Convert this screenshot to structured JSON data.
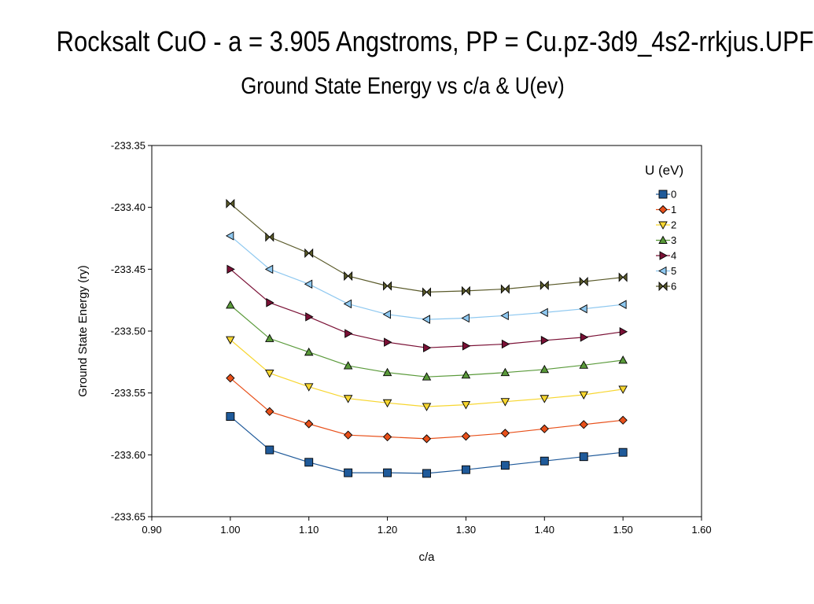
{
  "title": "Rocksalt CuO - a = 3.905 Angstroms, PP = Cu.pz-3d9_4s2-rrkjus.UPF",
  "subtitle": "Ground State Energy vs c/a & U(ev)",
  "chart_data": {
    "type": "line",
    "title": "Rocksalt CuO - a = 3.905 Angstroms, PP = Cu.pz-3d9_4s2-rrkjus.UPF",
    "subtitle": "Ground State Energy vs c/a & U(ev)",
    "xlabel": "c/a",
    "ylabel": "Ground State Energy (ry)",
    "xlim": [
      0.9,
      1.6
    ],
    "ylim": [
      -233.65,
      -233.35
    ],
    "xticks": [
      "0.90",
      "1.00",
      "1.10",
      "1.20",
      "1.30",
      "1.40",
      "1.50",
      "1.60"
    ],
    "yticks": [
      "-233.35",
      "-233.40",
      "-233.45",
      "-233.50",
      "-233.55",
      "-233.60",
      "-233.65"
    ],
    "legend_title": "U (eV)",
    "legend_position": "top-right",
    "grid": false,
    "x": [
      1.0,
      1.05,
      1.1,
      1.15,
      1.2,
      1.25,
      1.3,
      1.35,
      1.4,
      1.45,
      1.5
    ],
    "series": [
      {
        "name": "0",
        "color": "#1f5a9a",
        "marker": "square",
        "values": [
          -233.569,
          -233.596,
          -233.606,
          -233.6145,
          -233.6145,
          -233.615,
          -233.612,
          -233.6085,
          -233.605,
          -233.6015,
          -233.598
        ]
      },
      {
        "name": "1",
        "color": "#e8501a",
        "marker": "diamond",
        "values": [
          -233.538,
          -233.565,
          -233.575,
          -233.584,
          -233.5855,
          -233.587,
          -233.585,
          -233.5825,
          -233.579,
          -233.5755,
          -233.572
        ]
      },
      {
        "name": "2",
        "color": "#f7d630",
        "marker": "triangle-down",
        "values": [
          -233.507,
          -233.534,
          -233.545,
          -233.5545,
          -233.558,
          -233.561,
          -233.5595,
          -233.557,
          -233.5545,
          -233.5515,
          -233.547
        ]
      },
      {
        "name": "3",
        "color": "#5a9a3a",
        "marker": "triangle-up",
        "values": [
          -233.479,
          -233.506,
          -233.517,
          -233.528,
          -233.5335,
          -233.537,
          -233.5355,
          -233.5335,
          -233.531,
          -233.5275,
          -233.5235
        ]
      },
      {
        "name": "4",
        "color": "#7a1035",
        "marker": "triangle-right",
        "values": [
          -233.45,
          -233.477,
          -233.4885,
          -233.502,
          -233.509,
          -233.5135,
          -233.512,
          -233.5105,
          -233.5075,
          -233.505,
          -233.5005
        ]
      },
      {
        "name": "5",
        "color": "#8ec8f0",
        "marker": "triangle-left",
        "values": [
          -233.423,
          -233.45,
          -233.462,
          -233.478,
          -233.4865,
          -233.4905,
          -233.4895,
          -233.4875,
          -233.485,
          -233.482,
          -233.4785
        ]
      },
      {
        "name": "6",
        "color": "#5a5a2a",
        "marker": "bowtie",
        "values": [
          -233.397,
          -233.424,
          -233.437,
          -233.4555,
          -233.4635,
          -233.4685,
          -233.4675,
          -233.466,
          -233.463,
          -233.46,
          -233.4565
        ]
      }
    ]
  }
}
